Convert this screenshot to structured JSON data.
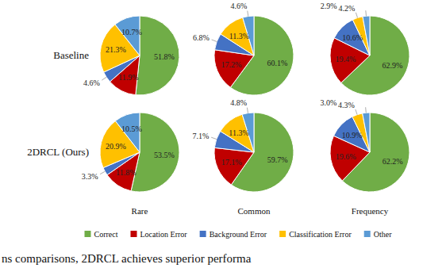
{
  "chart_data": {
    "type": "pie",
    "data_labels": true,
    "legend": "bottom",
    "categories": [
      "Correct",
      "Location Error",
      "Background Error",
      "Classification Error",
      "Other"
    ],
    "colors": [
      "#70ad47",
      "#c00000",
      "#4472c4",
      "#ffc000",
      "#5b9bd5"
    ],
    "row_labels": [
      "Baseline",
      "2DRCL (Ours)"
    ],
    "column_labels": [
      "Rare",
      "Common",
      "Frequency"
    ],
    "series": [
      {
        "values": [
          51.8,
          11.9,
          4.6,
          21.3,
          10.7
        ],
        "value_labels": [
          "51.8%",
          "11.9%",
          "4.6%",
          "21.3%",
          "10.7%"
        ]
      },
      {
        "values": [
          60.1,
          17.2,
          6.8,
          11.3,
          4.6
        ],
        "value_labels": [
          "60.1%",
          "17.2%",
          "6.8%",
          "11.3%",
          "4.6%"
        ]
      },
      {
        "values": [
          62.9,
          19.4,
          10.6,
          4.2,
          2.9
        ],
        "value_labels": [
          "62.9%",
          "19.4%",
          "10.6%",
          "4.2%",
          "2.9%"
        ]
      },
      {
        "values": [
          53.5,
          11.8,
          3.3,
          20.9,
          10.5
        ],
        "value_labels": [
          "53.5%",
          "11.8%",
          "3.3%",
          "20.9%",
          "10.5%"
        ]
      },
      {
        "values": [
          59.7,
          17.1,
          7.1,
          11.3,
          4.8
        ],
        "value_labels": [
          "59.7%",
          "17.1%",
          "7.1%",
          "11.3%",
          "4.8%"
        ]
      },
      {
        "values": [
          62.2,
          19.6,
          10.9,
          4.3,
          3.0
        ],
        "value_labels": [
          "62.2%",
          "19.6%",
          "10.9%",
          "4.3%",
          "3.0%"
        ]
      }
    ],
    "caption": "ns comparisons, 2DRCL achieves superior performa"
  }
}
